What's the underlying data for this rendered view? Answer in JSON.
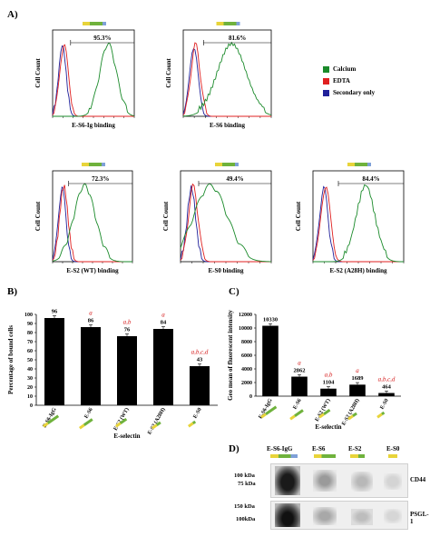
{
  "panels": {
    "A": "A)",
    "B": "B)",
    "C": "C)",
    "D": "D)"
  },
  "legend": [
    {
      "label": "Calcium",
      "color": "#1a8a2a"
    },
    {
      "label": "EDTA",
      "color": "#e02020"
    },
    {
      "label": "Secondary only",
      "color": "#20209a"
    }
  ],
  "flow": {
    "ylabel": "Cell Count",
    "plots": [
      {
        "xlabel": "E-S6-Ig binding",
        "percent": "95.3%"
      },
      {
        "xlabel": "E-S6 binding",
        "percent": "81.6%"
      },
      {
        "xlabel": "E-S2 (WT) binding",
        "percent": "72.3%"
      },
      {
        "xlabel": "E-S0 binding",
        "percent": "49.4%"
      },
      {
        "xlabel": "E-S2 (A28H) binding",
        "percent": "84.4%"
      }
    ]
  },
  "colors": {
    "bar": "#000000",
    "red_annot": "#d62020"
  },
  "chart_data": [
    {
      "type": "bar",
      "title": "",
      "ylabel": "Percentage of bound cells",
      "xlabel": "E-selectin",
      "categories": [
        "E-S6-IgG",
        "E-S6",
        "E-S2 (WT)",
        "E-S2 (A28H)",
        "E-S0"
      ],
      "values": [
        96,
        86,
        76,
        84,
        43
      ],
      "value_labels": [
        "96",
        "86",
        "76",
        "84",
        "43"
      ],
      "annotations": [
        "",
        "a",
        "a,b",
        "a",
        "a,b,c,d"
      ],
      "ylim": [
        0,
        100
      ],
      "yticks": [
        "0",
        "10",
        "20",
        "30",
        "40",
        "50",
        "60",
        "70",
        "80",
        "90",
        "100"
      ]
    },
    {
      "type": "bar",
      "title": "",
      "ylabel": "Geo mean of fluorescent intensity",
      "xlabel": "E-selectin",
      "categories": [
        "E-S6-IgG",
        "E-S6",
        "E-S2 (WT)",
        "E-S2 (A28H)",
        "E-S0"
      ],
      "values": [
        10330,
        2862,
        1104,
        1689,
        464
      ],
      "value_labels": [
        "10330",
        "2862",
        "1104",
        "1689",
        "464"
      ],
      "annotations": [
        "",
        "a",
        "a,b",
        "a",
        "a,b,c,d"
      ],
      "ylim": [
        0,
        12000
      ],
      "yticks": [
        "0",
        "2000",
        "4000",
        "6000",
        "8000",
        "10000",
        "12000"
      ]
    }
  ],
  "blot": {
    "columns": [
      "E-S6-IgG",
      "E-S6",
      "E-S2",
      "E-S0"
    ],
    "rows": [
      {
        "markers": [
          "100 kDa",
          "75 kDa"
        ],
        "label": "CD44"
      },
      {
        "markers": [
          "150 kDa",
          "100kDa"
        ],
        "label": "PSGL-1"
      }
    ]
  }
}
